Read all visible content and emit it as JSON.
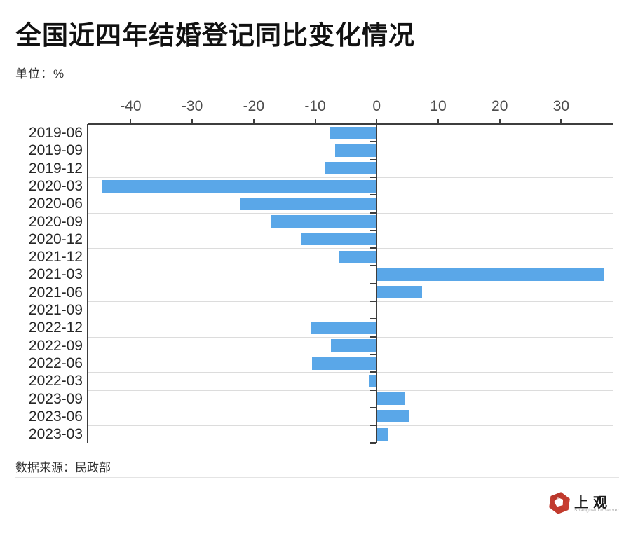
{
  "header": {
    "title": "全国近四年结婚登记同比变化情况",
    "unit_label": "单位：%"
  },
  "chart_data": {
    "type": "bar",
    "orientation": "horizontal",
    "title": "全国近四年结婚登记同比变化情况",
    "unit": "%",
    "categories": [
      "2019-06",
      "2019-09",
      "2019-12",
      "2020-03",
      "2020-06",
      "2020-09",
      "2020-12",
      "2021-12",
      "2021-03",
      "2021-06",
      "2021-09",
      "2022-12",
      "2022-09",
      "2022-06",
      "2022-03",
      "2023-09",
      "2023-06",
      "2023-03"
    ],
    "values": [
      -7.7,
      -6.8,
      -8.4,
      -44.7,
      -22.1,
      -17.3,
      -12.2,
      -6.1,
      36.9,
      7.4,
      -0.1,
      -10.6,
      -7.4,
      -10.5,
      -1.3,
      4.5,
      5.2,
      1.9
    ],
    "xticks": [
      -40,
      -30,
      -20,
      -10,
      0,
      10,
      20,
      30
    ],
    "xlim": [
      -47,
      38.5
    ],
    "value_axis_position": "top",
    "grid": true,
    "legend": "none",
    "bar_color": "#5AA7E8"
  },
  "footer": {
    "source": "数据来源：民政部"
  },
  "logo": {
    "cn": "上观",
    "en": "Shanghai Observer",
    "red": "#c23b2e"
  }
}
